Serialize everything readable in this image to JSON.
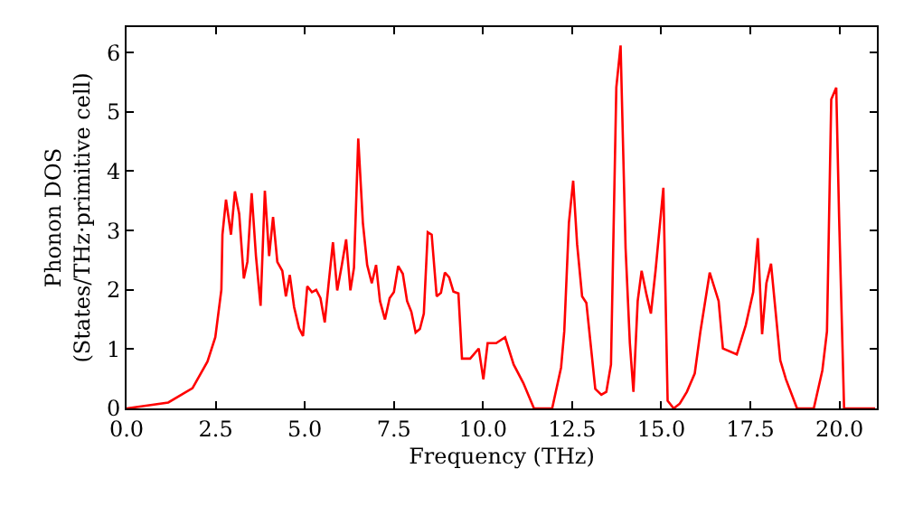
{
  "chart_data": {
    "type": "line",
    "xlabel": "Frequency (THz)",
    "ylabel": "Phonon DOS\n(States/THz·primitive cell)",
    "x": [
      0,
      1.17,
      1.85,
      2.27,
      2.49,
      2.66,
      2.69,
      2.79,
      2.93,
      3.04,
      3.16,
      3.29,
      3.39,
      3.51,
      3.63,
      3.76,
      3.88,
      4.0,
      4.11,
      4.23,
      4.37,
      4.47,
      4.58,
      4.7,
      4.84,
      4.95,
      5.07,
      5.2,
      5.32,
      5.44,
      5.56,
      5.67,
      5.79,
      5.91,
      6.04,
      6.16,
      6.28,
      6.38,
      6.5,
      6.63,
      6.75,
      6.88,
      7.0,
      7.11,
      7.25,
      7.38,
      7.5,
      7.62,
      7.75,
      7.87,
      7.99,
      8.11,
      8.23,
      8.34,
      8.45,
      8.56,
      8.7,
      8.82,
      8.93,
      9.05,
      9.17,
      9.31,
      9.41,
      9.64,
      9.88,
      10.01,
      10.13,
      10.37,
      10.62,
      10.86,
      11.13,
      11.43,
      11.94,
      12.19,
      12.28,
      12.41,
      12.53,
      12.64,
      12.78,
      12.9,
      13.15,
      13.32,
      13.46,
      13.59,
      13.74,
      13.86,
      14.0,
      14.12,
      14.22,
      14.34,
      14.45,
      14.59,
      14.71,
      14.84,
      15.06,
      15.18,
      15.35,
      15.52,
      15.72,
      15.94,
      16.1,
      16.36,
      16.61,
      16.73,
      17.12,
      17.37,
      17.58,
      17.71,
      17.83,
      17.95,
      18.08,
      18.34,
      18.5,
      18.81,
      19.28,
      19.52,
      19.65,
      19.77,
      19.91,
      19.99,
      20.13,
      21.0
    ],
    "series": [
      {
        "color": "#ff0000",
        "values": [
          0,
          0.1,
          0.34,
          0.79,
          1.2,
          2.0,
          2.93,
          3.52,
          2.93,
          3.66,
          3.28,
          2.19,
          2.47,
          3.63,
          2.57,
          1.73,
          3.67,
          2.57,
          3.23,
          2.47,
          2.32,
          1.89,
          2.25,
          1.71,
          1.35,
          1.22,
          2.06,
          1.96,
          2.0,
          1.86,
          1.45,
          2.11,
          2.8,
          1.99,
          2.42,
          2.85,
          1.99,
          2.37,
          4.55,
          3.13,
          2.42,
          2.11,
          2.42,
          1.81,
          1.5,
          1.86,
          1.96,
          2.4,
          2.27,
          1.81,
          1.63,
          1.28,
          1.34,
          1.6,
          2.97,
          2.93,
          1.89,
          1.95,
          2.29,
          2.21,
          1.97,
          1.94,
          0.84,
          0.84,
          1.01,
          0.49,
          1.1,
          1.1,
          1.2,
          0.74,
          0.43,
          0,
          0,
          0.69,
          1.3,
          3.13,
          3.84,
          2.77,
          1.89,
          1.78,
          0.33,
          0.23,
          0.28,
          0.74,
          5.41,
          6.12,
          2.7,
          1.1,
          0.28,
          1.81,
          2.32,
          1.91,
          1.6,
          2.32,
          3.72,
          0.13,
          0,
          0.08,
          0.28,
          0.59,
          1.3,
          2.29,
          1.81,
          1.01,
          0.91,
          1.4,
          1.96,
          2.87,
          1.25,
          2.11,
          2.44,
          0.81,
          0.49,
          0,
          0,
          0.64,
          1.3,
          5.21,
          5.41,
          3.23,
          0,
          0
        ]
      }
    ],
    "xlim": [
      0,
      21.05
    ],
    "ylim": [
      0,
      6.43
    ],
    "xticks": [
      {
        "value": 0,
        "label": "0.0"
      },
      {
        "value": 2.5,
        "label": "2.5"
      },
      {
        "value": 5,
        "label": "5.0"
      },
      {
        "value": 7.5,
        "label": "7.5"
      },
      {
        "value": 10,
        "label": "10.0"
      },
      {
        "value": 12.5,
        "label": "12.5"
      },
      {
        "value": 15,
        "label": "15.0"
      },
      {
        "value": 17.5,
        "label": "17.5"
      },
      {
        "value": 20,
        "label": "20.0"
      }
    ],
    "yticks": [
      0,
      1,
      2,
      3,
      4,
      5,
      6
    ],
    "legend": false,
    "marker": "none",
    "line_style": "solid"
  }
}
